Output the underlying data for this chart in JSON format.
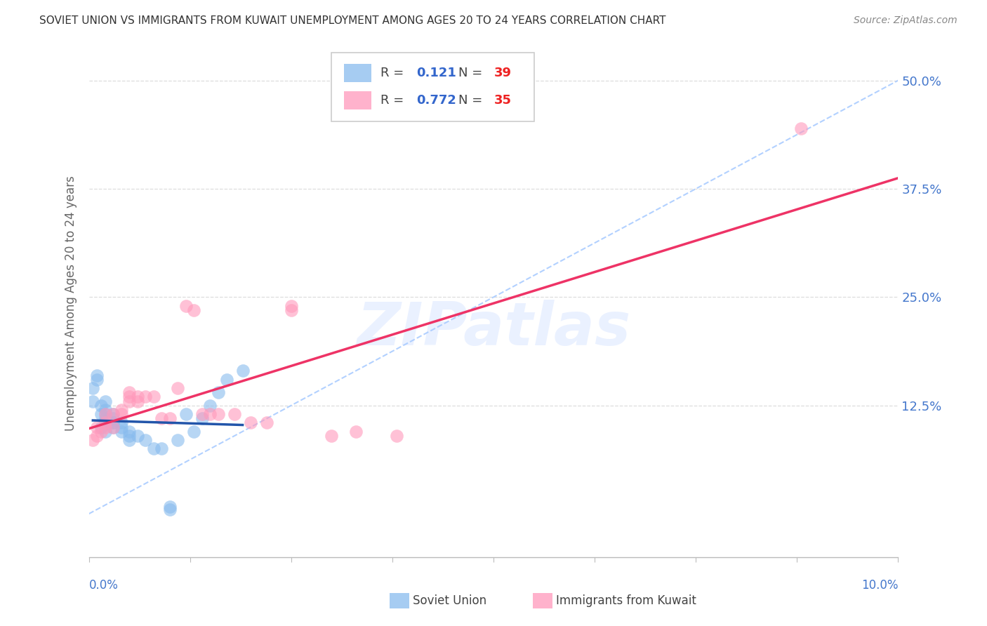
{
  "title": "SOVIET UNION VS IMMIGRANTS FROM KUWAIT UNEMPLOYMENT AMONG AGES 20 TO 24 YEARS CORRELATION CHART",
  "source": "Source: ZipAtlas.com",
  "ylabel": "Unemployment Among Ages 20 to 24 years",
  "xmin": 0.0,
  "xmax": 0.1,
  "ymin": -0.05,
  "ymax": 0.535,
  "color_soviet": "#88BBEE",
  "color_kuwait": "#FF99BB",
  "color_soviet_line": "#2255AA",
  "color_kuwait_line": "#EE3366",
  "color_ref_line": "#AACCFF",
  "color_grid": "#DDDDDD",
  "color_right_tick": "#4477CC",
  "right_yticks": [
    0.0,
    0.125,
    0.25,
    0.375,
    0.5
  ],
  "right_yticklabels": [
    "",
    "12.5%",
    "25.0%",
    "37.5%",
    "50.0%"
  ],
  "soviet_x": [
    0.0005,
    0.0005,
    0.001,
    0.001,
    0.0015,
    0.0015,
    0.0015,
    0.002,
    0.002,
    0.002,
    0.002,
    0.002,
    0.002,
    0.0025,
    0.003,
    0.003,
    0.003,
    0.003,
    0.003,
    0.004,
    0.004,
    0.004,
    0.005,
    0.005,
    0.005,
    0.006,
    0.007,
    0.008,
    0.009,
    0.01,
    0.01,
    0.011,
    0.012,
    0.013,
    0.014,
    0.015,
    0.016,
    0.017,
    0.019
  ],
  "soviet_y": [
    0.13,
    0.145,
    0.155,
    0.16,
    0.1,
    0.115,
    0.125,
    0.095,
    0.105,
    0.11,
    0.115,
    0.12,
    0.13,
    0.105,
    0.1,
    0.105,
    0.105,
    0.11,
    0.115,
    0.095,
    0.1,
    0.105,
    0.085,
    0.09,
    0.095,
    0.09,
    0.085,
    0.075,
    0.075,
    0.005,
    0.008,
    0.085,
    0.115,
    0.095,
    0.11,
    0.125,
    0.14,
    0.155,
    0.165
  ],
  "kuwait_x": [
    0.0005,
    0.001,
    0.001,
    0.0015,
    0.002,
    0.002,
    0.002,
    0.003,
    0.003,
    0.004,
    0.004,
    0.005,
    0.005,
    0.005,
    0.006,
    0.006,
    0.007,
    0.008,
    0.009,
    0.01,
    0.011,
    0.012,
    0.013,
    0.014,
    0.015,
    0.016,
    0.018,
    0.02,
    0.022,
    0.025,
    0.025,
    0.03,
    0.033,
    0.038,
    0.088
  ],
  "kuwait_y": [
    0.085,
    0.09,
    0.1,
    0.095,
    0.1,
    0.105,
    0.115,
    0.1,
    0.115,
    0.115,
    0.12,
    0.13,
    0.135,
    0.14,
    0.13,
    0.135,
    0.135,
    0.135,
    0.11,
    0.11,
    0.145,
    0.24,
    0.235,
    0.115,
    0.115,
    0.115,
    0.115,
    0.105,
    0.105,
    0.235,
    0.24,
    0.09,
    0.095,
    0.09,
    0.445
  ],
  "watermark": "ZIPatlas",
  "bottom_legend1": "Soviet Union",
  "bottom_legend2": "Immigrants from Kuwait"
}
